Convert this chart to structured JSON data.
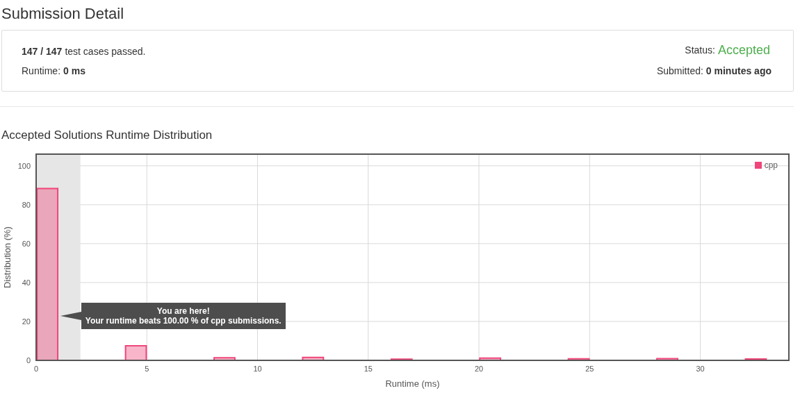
{
  "chart_data": {
    "type": "bar",
    "title": "Submission Detail",
    "subtitle": "Accepted Solutions Runtime Distribution",
    "xlabel": "Runtime (ms)",
    "ylabel": "Distribution (%)",
    "x": [
      0.5,
      4.5,
      8.5,
      12.5,
      16.5,
      20.5,
      24.5,
      28.5,
      32.5
    ],
    "series": [
      {
        "name": "cpp",
        "color": "#f0457a",
        "values": [
          88.3,
          7.5,
          1.3,
          1.5,
          0.6,
          1.2,
          0.8,
          0.9,
          0.7
        ]
      }
    ],
    "xlim": [
      0,
      34
    ],
    "xticks": [
      0,
      5,
      10,
      15,
      20,
      25,
      30
    ],
    "ylim": [
      0,
      106
    ],
    "yticks": [
      0,
      20,
      40,
      60,
      80,
      100
    ],
    "grid": true,
    "legend": "top right",
    "bands": [
      {
        "axis": "x",
        "from": 0,
        "to": 2,
        "color": "#e6e6e6"
      }
    ],
    "annotations": [
      "147 / 147",
      "test cases passed.",
      "Runtime:",
      "0 ms",
      "Status:",
      "Accepted",
      "Submitted:",
      "0 minutes ago",
      "You are here!",
      "Your runtime beats 100.00 % of cpp submissions."
    ]
  }
}
